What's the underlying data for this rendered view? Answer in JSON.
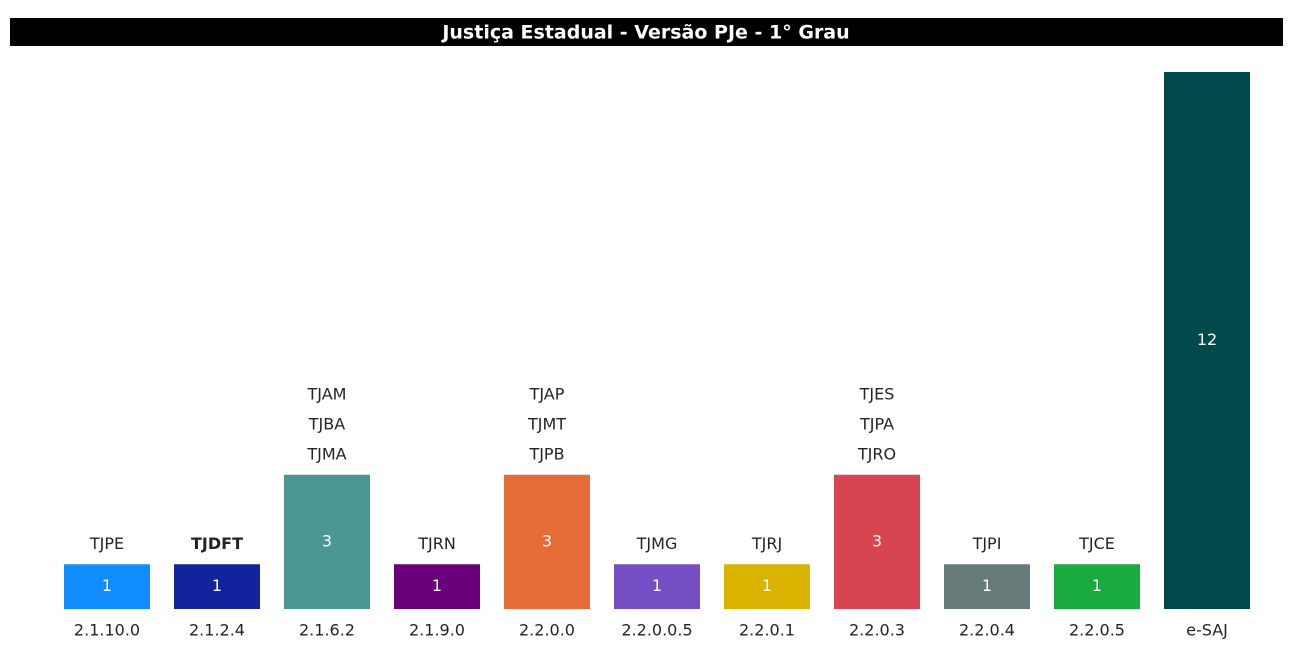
{
  "chart_data": {
    "type": "bar",
    "title": "Justiça Estadual - Versão PJe - 1° Grau",
    "categories": [
      "2.1.10.0",
      "2.1.2.4",
      "2.1.6.2",
      "2.1.9.0",
      "2.2.0.0",
      "2.2.0.0.5",
      "2.2.0.1",
      "2.2.0.3",
      "2.2.0.4",
      "2.2.0.5",
      "e-SAJ"
    ],
    "values": [
      1,
      1,
      3,
      1,
      3,
      1,
      1,
      3,
      1,
      1,
      12
    ],
    "colors": [
      "#118DFF",
      "#12239E",
      "#4A9794",
      "#6B007B",
      "#E66C37",
      "#744EC2",
      "#D9B300",
      "#D64550",
      "#687B7B",
      "#1AAB40",
      "#004A4B"
    ],
    "annotations": [
      [
        "TJPE"
      ],
      [
        "TJDFT"
      ],
      [
        "TJAM",
        "TJBA",
        "TJMA"
      ],
      [
        "TJRN"
      ],
      [
        "TJAP",
        "TJMT",
        "TJPB"
      ],
      [
        "TJMG"
      ],
      [
        "TJRJ"
      ],
      [
        "TJES",
        "TJPA",
        "TJRO"
      ],
      [
        "TJPI"
      ],
      [
        "TJCE"
      ],
      []
    ]
  }
}
